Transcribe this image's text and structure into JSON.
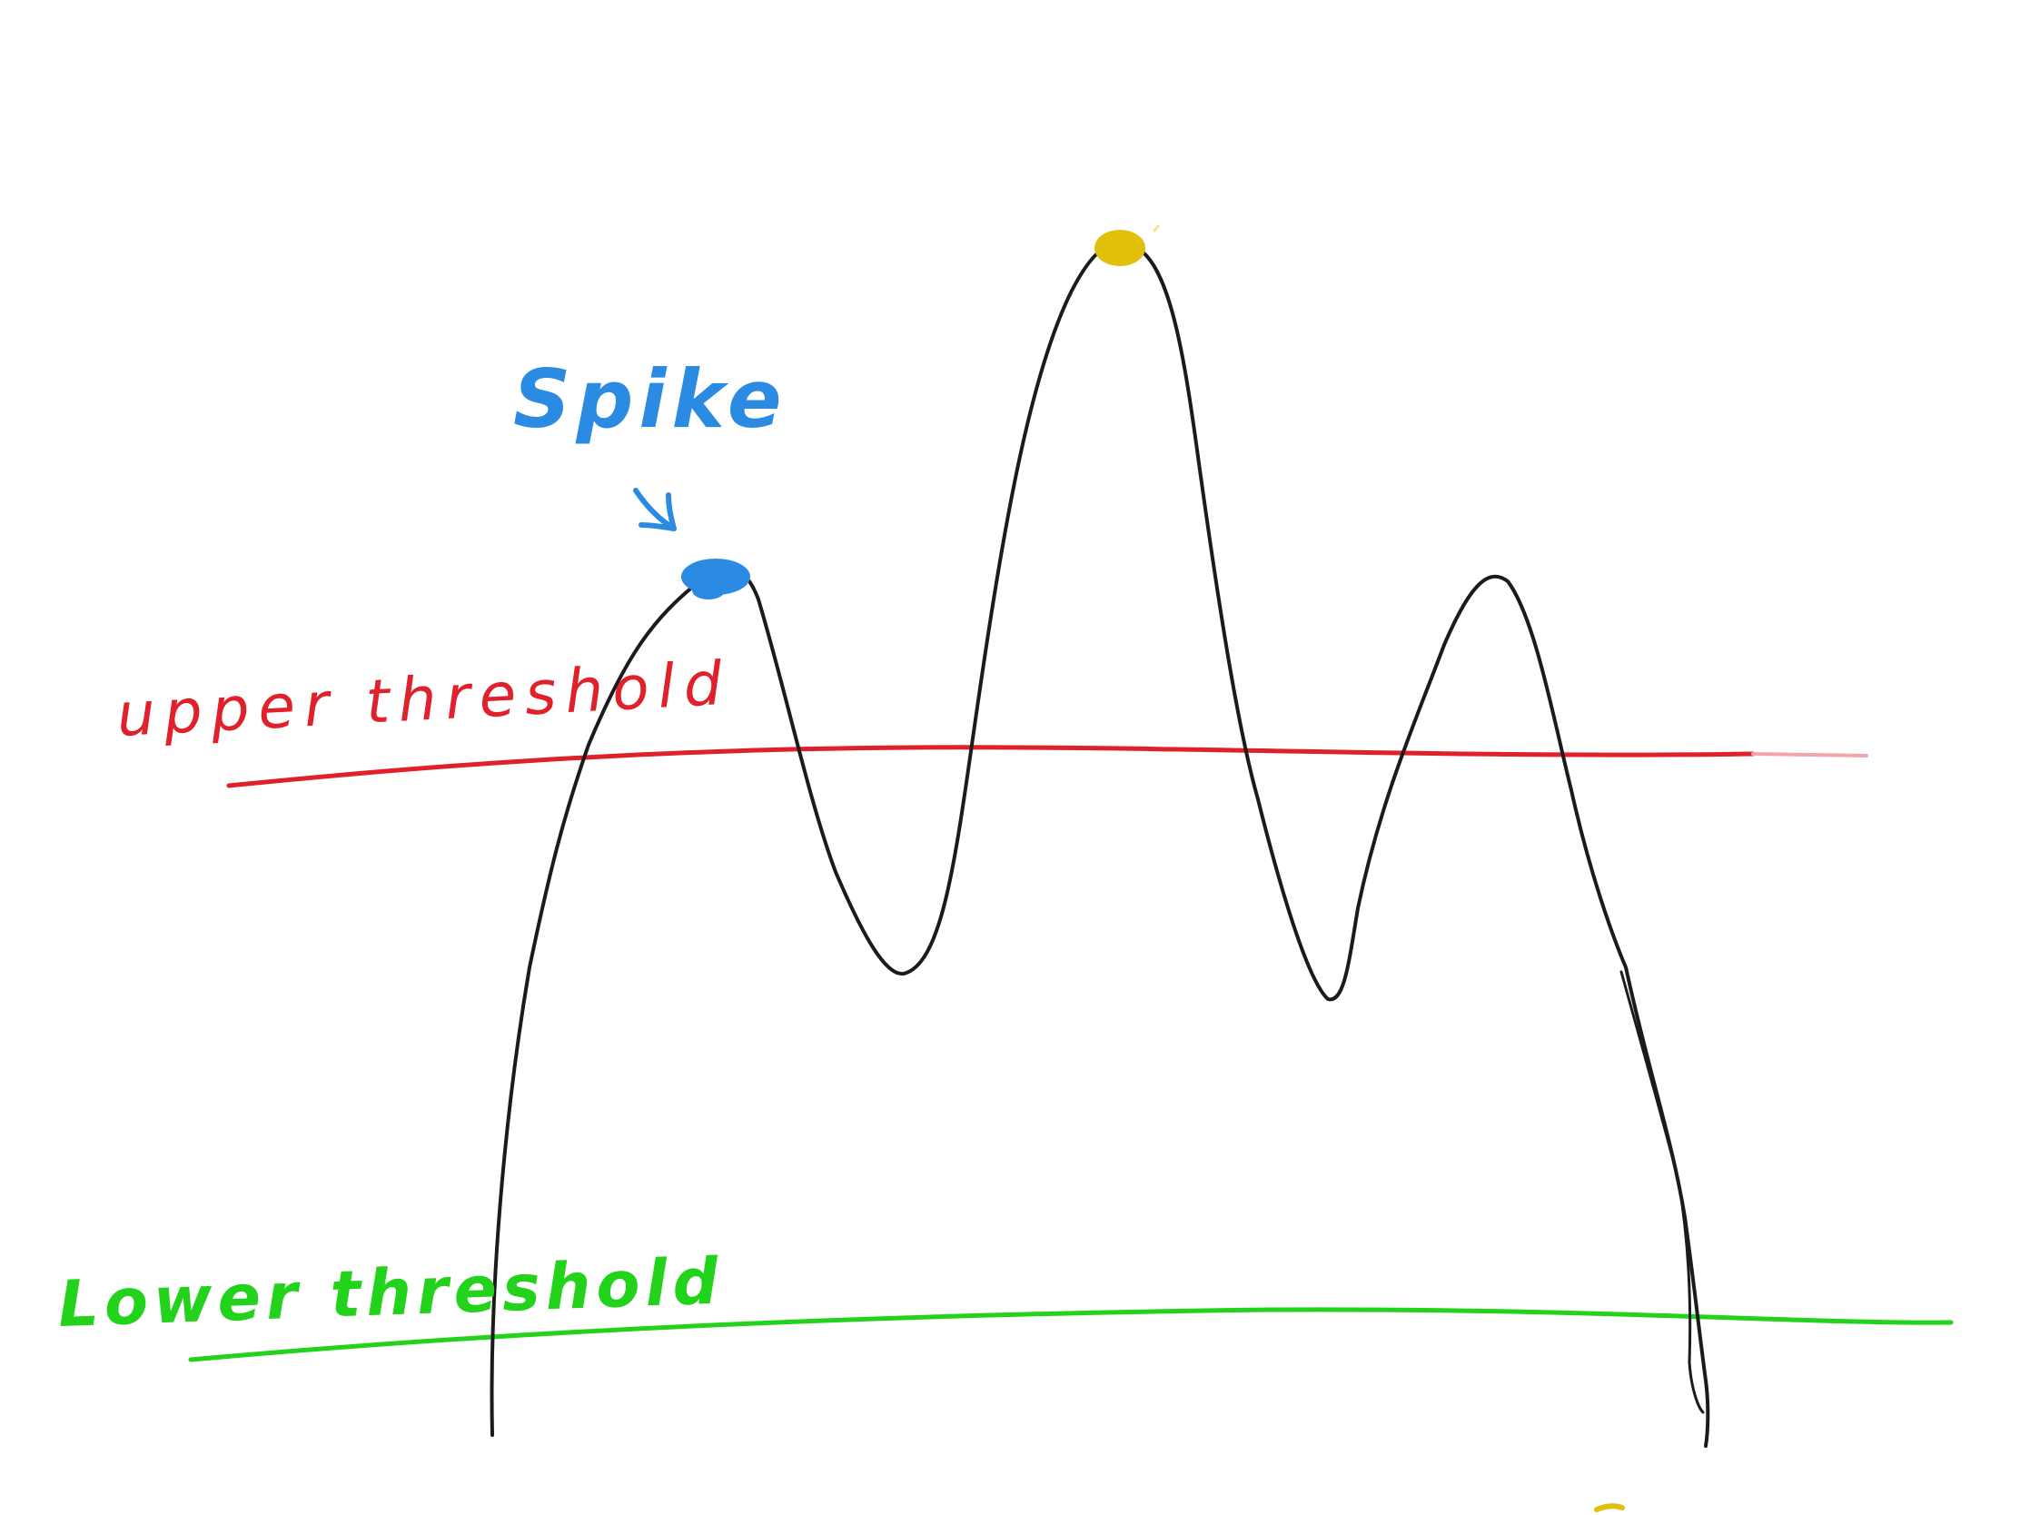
{
  "labels": {
    "upper": "upper threshold",
    "lower": "Lower threshold",
    "spike": "Spike"
  },
  "colors": {
    "background": "#ffffff",
    "signal": "#1b1b1b",
    "upper_threshold": "#e0202a",
    "lower_threshold": "#22d21b",
    "spike_marker": "#2b8be3",
    "peak_marker": "#e0c00a"
  }
}
